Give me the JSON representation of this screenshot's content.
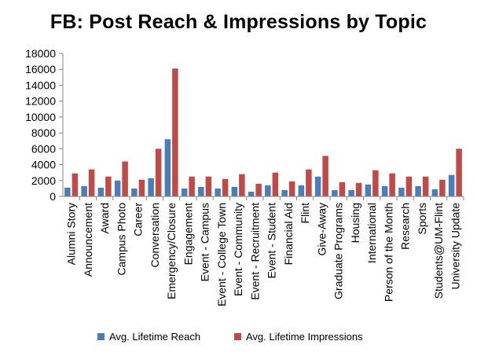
{
  "chart_data": {
    "type": "bar",
    "title": "FB: Post Reach & Impressions by Topic",
    "categories": [
      "Alumni Story",
      "Announcement",
      "Award",
      "Campus Photo",
      "Career",
      "Conversation",
      "Emergency/Closure",
      "Engagement",
      "Event - Campus",
      "Event - College Town",
      "Event - Community",
      "Event - Recruitment",
      "Event - Student",
      "Financial Aid",
      "Flint",
      "Give-Away",
      "Graduate Programs",
      "Housing",
      "International",
      "Person of the Month",
      "Research",
      "Sports",
      "Students@UM-Flint",
      "University Update"
    ],
    "series": [
      {
        "name": "Avg. Lifetime Reach",
        "color": "#4a7ebb",
        "values": [
          1100,
          1300,
          1100,
          2000,
          1000,
          2300,
          7200,
          1000,
          1200,
          1000,
          1200,
          600,
          1400,
          800,
          1400,
          2500,
          800,
          800,
          1500,
          1300,
          1100,
          1300,
          900,
          2700
        ]
      },
      {
        "name": "Avg. Lifetime Impressions",
        "color": "#be4b48",
        "values": [
          2900,
          3400,
          2500,
          4400,
          2100,
          6000,
          16100,
          2500,
          2500,
          2200,
          2800,
          1600,
          3000,
          1900,
          3400,
          5100,
          1800,
          1700,
          3300,
          2900,
          2500,
          2500,
          2100,
          6000
        ]
      }
    ],
    "ylim": [
      0,
      18000
    ],
    "yticks": [
      0,
      2000,
      4000,
      6000,
      8000,
      10000,
      12000,
      14000,
      16000,
      18000
    ],
    "legend_position": "bottom",
    "grid": false
  }
}
